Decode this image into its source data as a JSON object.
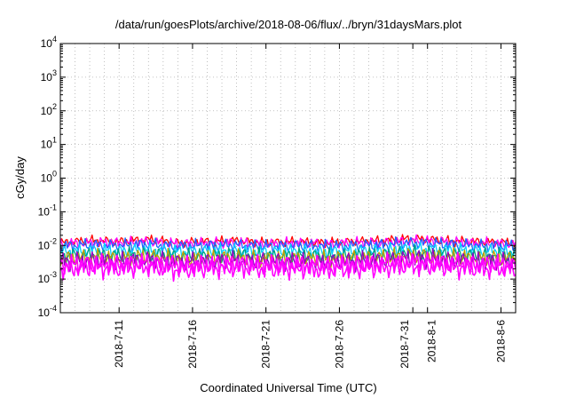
{
  "chart_data": {
    "type": "line",
    "title": "/data/run/goesPlots/archive/2018-08-06/flux/../bryn/31daysMars.plot",
    "xlabel": "Coordinated Universal Time (UTC)",
    "ylabel": "cGy/day",
    "y_scale": "log",
    "ylim": [
      0.0001,
      10000
    ],
    "y_ticks": [
      {
        "value": 0.0001,
        "base": "10",
        "exp": "-4"
      },
      {
        "value": 0.001,
        "base": "10",
        "exp": "-3"
      },
      {
        "value": 0.01,
        "base": "10",
        "exp": "-2"
      },
      {
        "value": 0.1,
        "base": "10",
        "exp": "-1"
      },
      {
        "value": 1,
        "base": "10",
        "exp": "0"
      },
      {
        "value": 10,
        "base": "10",
        "exp": "1"
      },
      {
        "value": 100,
        "base": "10",
        "exp": "2"
      },
      {
        "value": 1000,
        "base": "10",
        "exp": "3"
      },
      {
        "value": 10000,
        "base": "10",
        "exp": "4"
      }
    ],
    "xlim": [
      "2018-07-07",
      "2018-08-07"
    ],
    "x_ticks": [
      "2018-7-11",
      "2018-7-16",
      "2018-7-21",
      "2018-7-26",
      "2018-7-31",
      "2018-8-1",
      "2018-8-6"
    ],
    "grid": true,
    "series": [
      {
        "color": "#ff0000",
        "x": [
          "2018-07-07",
          "2018-07-09",
          "2018-07-11",
          "2018-07-13",
          "2018-07-15",
          "2018-07-17",
          "2018-07-19",
          "2018-07-21",
          "2018-07-23",
          "2018-07-25",
          "2018-07-27",
          "2018-07-29",
          "2018-07-31",
          "2018-08-02",
          "2018-08-04",
          "2018-08-07"
        ],
        "values": [
          0.012,
          0.014,
          0.013,
          0.015,
          0.012,
          0.013,
          0.014,
          0.012,
          0.013,
          0.012,
          0.013,
          0.014,
          0.016,
          0.014,
          0.013,
          0.012
        ]
      },
      {
        "color": "#ff00ff",
        "x": [
          "2018-07-07",
          "2018-07-09",
          "2018-07-11",
          "2018-07-13",
          "2018-07-15",
          "2018-07-17",
          "2018-07-19",
          "2018-07-21",
          "2018-07-23",
          "2018-07-25",
          "2018-07-27",
          "2018-07-29",
          "2018-07-31",
          "2018-08-02",
          "2018-08-04",
          "2018-08-07"
        ],
        "values": [
          0.011,
          0.012,
          0.012,
          0.013,
          0.011,
          0.012,
          0.012,
          0.011,
          0.012,
          0.011,
          0.012,
          0.012,
          0.014,
          0.013,
          0.012,
          0.011
        ]
      },
      {
        "color": "#1e64ff",
        "x": [
          "2018-07-07",
          "2018-07-09",
          "2018-07-11",
          "2018-07-13",
          "2018-07-15",
          "2018-07-17",
          "2018-07-19",
          "2018-07-21",
          "2018-07-23",
          "2018-07-25",
          "2018-07-27",
          "2018-07-29",
          "2018-07-31",
          "2018-08-02",
          "2018-08-04",
          "2018-08-07"
        ],
        "values": [
          0.0095,
          0.0105,
          0.01,
          0.011,
          0.0095,
          0.01,
          0.0105,
          0.0095,
          0.01,
          0.0095,
          0.01,
          0.0105,
          0.012,
          0.011,
          0.01,
          0.0095
        ]
      },
      {
        "color": "#00d0ff",
        "x": [
          "2018-07-07",
          "2018-07-09",
          "2018-07-11",
          "2018-07-13",
          "2018-07-15",
          "2018-07-17",
          "2018-07-19",
          "2018-07-21",
          "2018-07-23",
          "2018-07-25",
          "2018-07-27",
          "2018-07-29",
          "2018-07-31",
          "2018-08-02",
          "2018-08-04",
          "2018-08-07"
        ],
        "values": [
          0.0065,
          0.0072,
          0.0068,
          0.0075,
          0.0065,
          0.0068,
          0.007,
          0.0065,
          0.0068,
          0.0065,
          0.0068,
          0.0072,
          0.008,
          0.0075,
          0.007,
          0.0066
        ]
      },
      {
        "color": "#00a080",
        "x": [
          "2018-07-07",
          "2018-07-09",
          "2018-07-11",
          "2018-07-13",
          "2018-07-15",
          "2018-07-17",
          "2018-07-19",
          "2018-07-21",
          "2018-07-23",
          "2018-07-25",
          "2018-07-27",
          "2018-07-29",
          "2018-07-31",
          "2018-08-02",
          "2018-08-04",
          "2018-08-07"
        ],
        "values": [
          0.0048,
          0.0052,
          0.005,
          0.0055,
          0.0047,
          0.005,
          0.0052,
          0.0048,
          0.005,
          0.0047,
          0.005,
          0.0053,
          0.006,
          0.0055,
          0.0051,
          0.0048
        ]
      },
      {
        "color": "#c0a000",
        "x": [
          "2018-07-07",
          "2018-07-09",
          "2018-07-11",
          "2018-07-13",
          "2018-07-15",
          "2018-07-17",
          "2018-07-19",
          "2018-07-21",
          "2018-07-23",
          "2018-07-25",
          "2018-07-27",
          "2018-07-29",
          "2018-07-31",
          "2018-08-02",
          "2018-08-04",
          "2018-08-07"
        ],
        "values": [
          0.004,
          0.0044,
          0.0042,
          0.0046,
          0.004,
          0.0042,
          0.0044,
          0.004,
          0.0042,
          0.004,
          0.0042,
          0.0045,
          0.005,
          0.0046,
          0.0043,
          0.004
        ]
      },
      {
        "color": "#9000c0",
        "x": [
          "2018-07-07",
          "2018-07-09",
          "2018-07-11",
          "2018-07-13",
          "2018-07-15",
          "2018-07-17",
          "2018-07-19",
          "2018-07-21",
          "2018-07-23",
          "2018-07-25",
          "2018-07-27",
          "2018-07-29",
          "2018-07-31",
          "2018-08-02",
          "2018-08-04",
          "2018-08-07"
        ],
        "values": [
          0.0033,
          0.0036,
          0.0034,
          0.0038,
          0.0032,
          0.0034,
          0.0036,
          0.0033,
          0.0034,
          0.0032,
          0.0034,
          0.0037,
          0.0042,
          0.0038,
          0.0035,
          0.0033
        ]
      },
      {
        "color": "#ff00ff",
        "x": [
          "2018-07-07",
          "2018-07-09",
          "2018-07-11",
          "2018-07-13",
          "2018-07-15",
          "2018-07-17",
          "2018-07-19",
          "2018-07-21",
          "2018-07-23",
          "2018-07-25",
          "2018-07-27",
          "2018-07-29",
          "2018-07-31",
          "2018-08-02",
          "2018-08-04",
          "2018-08-07"
        ],
        "values": [
          0.0026,
          0.0028,
          0.0027,
          0.003,
          0.0025,
          0.0027,
          0.0028,
          0.0026,
          0.0027,
          0.0025,
          0.0027,
          0.0029,
          0.0033,
          0.003,
          0.0028,
          0.0026
        ]
      },
      {
        "color": "#ff00ff",
        "x": [
          "2018-07-07",
          "2018-07-09",
          "2018-07-11",
          "2018-07-13",
          "2018-07-15",
          "2018-07-17",
          "2018-07-19",
          "2018-07-21",
          "2018-07-23",
          "2018-07-25",
          "2018-07-27",
          "2018-07-29",
          "2018-07-31",
          "2018-08-02",
          "2018-08-04",
          "2018-08-07"
        ],
        "values": [
          0.002,
          0.0022,
          0.0021,
          0.0023,
          0.0019,
          0.0021,
          0.0022,
          0.002,
          0.0021,
          0.0019,
          0.0021,
          0.0022,
          0.0025,
          0.0023,
          0.0021,
          0.002
        ]
      }
    ]
  }
}
